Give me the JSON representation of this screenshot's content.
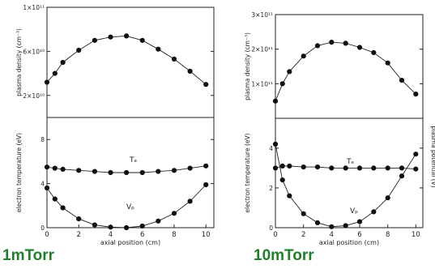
{
  "captions": {
    "left": "1mTorr",
    "right": "10mTorr"
  },
  "colors": {
    "marker": "#111111",
    "axis": "#222222",
    "caption": "#1f7f2a"
  },
  "chart_data": [
    {
      "type": "line",
      "panel": "left-top",
      "xlabel": "",
      "ylabel": "plasma density (cm⁻³)",
      "xlim": [
        0,
        10.5
      ],
      "ylim": [
        0,
        10
      ],
      "ytick_labels": [
        {
          "value": 2,
          "label": "2×10¹⁰"
        },
        {
          "value": 6,
          "label": "6×10¹⁰"
        },
        {
          "value": 10,
          "label": "1×10¹¹"
        }
      ],
      "series": [
        {
          "x": [
            0,
            0.5,
            1,
            2,
            3,
            4,
            5,
            6,
            7,
            8,
            9,
            10
          ],
          "y": [
            3.2,
            4.0,
            5.0,
            6.1,
            7.0,
            7.3,
            7.4,
            7.0,
            6.2,
            5.3,
            4.2,
            3.0
          ]
        }
      ]
    },
    {
      "type": "line",
      "panel": "left-bottom",
      "xlabel": "axial position (cm)",
      "ylabel": "electron temperature (eV)",
      "xlim": [
        0,
        10.5
      ],
      "ylim": [
        0,
        10
      ],
      "xticks": [
        0,
        2,
        4,
        6,
        8,
        10
      ],
      "yticks": [
        0,
        4,
        8
      ],
      "series": [
        {
          "name": "Tₑ",
          "x": [
            0,
            0.5,
            1,
            2,
            3,
            4,
            5,
            6,
            7,
            8,
            9,
            10
          ],
          "y": [
            5.5,
            5.4,
            5.3,
            5.2,
            5.1,
            5.0,
            5.0,
            5.0,
            5.1,
            5.2,
            5.4,
            5.6
          ]
        },
        {
          "name": "Vₚ",
          "x": [
            0,
            0.5,
            1,
            2,
            3,
            4,
            5,
            6,
            7,
            8,
            9,
            10
          ],
          "y": [
            3.6,
            2.6,
            1.8,
            0.8,
            0.25,
            0.05,
            0.0,
            0.15,
            0.6,
            1.3,
            2.4,
            3.9
          ]
        }
      ]
    },
    {
      "type": "line",
      "panel": "right-top",
      "xlabel": "",
      "ylabel": "plasma density (cm⁻³)",
      "xlim": [
        0,
        10.5
      ],
      "ylim": [
        0,
        3
      ],
      "ytick_labels": [
        {
          "value": 1,
          "label": "1×10¹¹"
        },
        {
          "value": 2,
          "label": "2×10¹¹"
        },
        {
          "value": 3,
          "label": "3×10¹¹"
        }
      ],
      "series": [
        {
          "x": [
            0,
            0.5,
            1,
            2,
            3,
            4,
            5,
            6,
            7,
            8,
            9,
            10
          ],
          "y": [
            0.5,
            1.0,
            1.35,
            1.8,
            2.1,
            2.2,
            2.17,
            2.05,
            1.9,
            1.6,
            1.1,
            0.7
          ]
        }
      ]
    },
    {
      "type": "line",
      "panel": "right-bottom",
      "xlabel": "axial position (cm)",
      "ylabel": "electron temperature (eV)",
      "ylabel_right": "plasma potential (V)",
      "xlim": [
        0,
        10.5
      ],
      "ylim": [
        0,
        5.5
      ],
      "xticks": [
        0,
        2,
        4,
        6,
        8,
        10
      ],
      "yticks": [
        0,
        2,
        4
      ],
      "series": [
        {
          "name": "Tₑ",
          "x": [
            0,
            0.5,
            1,
            2,
            3,
            4,
            5,
            6,
            7,
            8,
            9,
            10
          ],
          "y": [
            3.0,
            3.1,
            3.1,
            3.05,
            3.05,
            3.0,
            3.0,
            3.0,
            3.0,
            3.0,
            3.0,
            2.95
          ]
        },
        {
          "name": "Vₚ",
          "x": [
            0,
            0.5,
            1,
            2,
            3,
            4,
            5,
            6,
            7,
            8,
            9,
            10
          ],
          "y": [
            4.2,
            2.4,
            1.6,
            0.7,
            0.25,
            0.05,
            0.1,
            0.3,
            0.8,
            1.5,
            2.6,
            3.7
          ]
        }
      ]
    }
  ]
}
